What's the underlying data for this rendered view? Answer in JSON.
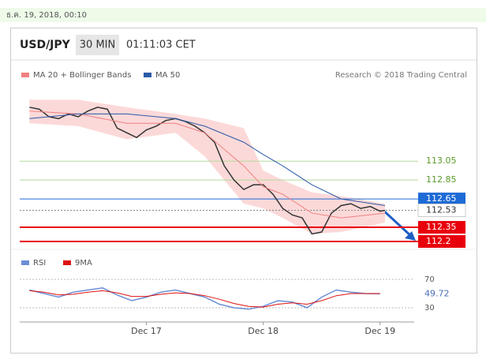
{
  "header": {
    "date": "ธ.ค. 19, 2018, 00:10",
    "symbol": "USD/JPY",
    "interval": "30 MIN",
    "time": "01:11:03 CET"
  },
  "chart_data": [
    {
      "type": "line",
      "source": "Research © 2018 Trading Central",
      "xlim": [
        -2,
        79
      ],
      "ylim": [
        112.15,
        113.92
      ],
      "xticks": [
        {
          "value": 24,
          "label": "Dec 17"
        },
        {
          "value": 48,
          "label": "Dec 18"
        },
        {
          "value": 72,
          "label": "Dec 19"
        }
      ],
      "series": [
        {
          "color": "#333333",
          "x": [
            0,
            2,
            4,
            6,
            8,
            10,
            12,
            14,
            16,
            18,
            20,
            22,
            24,
            26,
            28,
            30,
            32,
            34,
            36,
            38,
            40,
            42,
            44,
            46,
            48,
            50,
            52,
            54,
            56,
            58,
            60,
            62,
            64,
            66,
            68,
            70,
            72,
            73
          ],
          "values": [
            113.62,
            113.6,
            113.52,
            113.5,
            113.55,
            113.52,
            113.58,
            113.62,
            113.6,
            113.4,
            113.35,
            113.3,
            113.38,
            113.42,
            113.48,
            113.5,
            113.47,
            113.42,
            113.35,
            113.25,
            113.0,
            112.85,
            112.75,
            112.8,
            112.8,
            112.7,
            112.55,
            112.48,
            112.45,
            112.28,
            112.3,
            112.5,
            112.58,
            112.6,
            112.55,
            112.57,
            112.52,
            112.53
          ]
        },
        {
          "name": "MA 20 + Bollinger Bands",
          "color": "#f08080",
          "x": [
            0,
            10,
            20,
            30,
            36,
            44,
            48,
            52,
            58,
            64,
            73
          ],
          "values": [
            113.58,
            113.55,
            113.45,
            113.45,
            113.35,
            113.0,
            112.78,
            112.7,
            112.5,
            112.45,
            112.5
          ]
        },
        {
          "name": "MA 50",
          "color": "#2a5aa8",
          "x": [
            0,
            10,
            20,
            30,
            36,
            44,
            48,
            52,
            58,
            64,
            73
          ],
          "values": [
            113.5,
            113.55,
            113.55,
            113.5,
            113.42,
            113.25,
            113.12,
            113.0,
            112.8,
            112.65,
            112.58
          ]
        }
      ],
      "band": {
        "color": "#fcd9d9",
        "x": [
          0,
          10,
          20,
          30,
          36,
          44,
          48,
          52,
          58,
          64,
          73
        ],
        "upper": [
          113.7,
          113.7,
          113.62,
          113.55,
          113.5,
          113.4,
          112.95,
          112.85,
          112.72,
          112.68,
          112.6
        ],
        "lower": [
          113.45,
          113.42,
          113.28,
          113.35,
          113.1,
          112.6,
          112.55,
          112.45,
          112.28,
          112.3,
          112.4
        ]
      },
      "levels": [
        {
          "value": 113.05,
          "color": "#b5d99c",
          "text_color": "#5a9a2a"
        },
        {
          "value": 112.85,
          "color": "#b5d99c",
          "text_color": "#5a9a2a"
        },
        {
          "value": 112.65,
          "color": "#1e6ad6",
          "text_color": "#ffffff",
          "fill": "#1e6ad6"
        },
        {
          "value": 112.53,
          "color": "#888888",
          "text_color": "#333333",
          "dashed": true
        },
        {
          "value": 112.35,
          "color": "#e8000b",
          "text_color": "#ffffff",
          "fill": "#e8000b"
        },
        {
          "value": 112.2,
          "color": "#e8000b",
          "text_color": "#ffffff",
          "fill": "#e8000b"
        }
      ]
    },
    {
      "type": "line",
      "xlim": [
        -2,
        79
      ],
      "ylim": [
        13,
        85
      ],
      "yticks": [
        70,
        30
      ],
      "series": [
        {
          "name": "RSI",
          "color": "#6b8fd6",
          "x": [
            0,
            3,
            6,
            9,
            12,
            15,
            18,
            21,
            24,
            27,
            30,
            33,
            36,
            39,
            42,
            45,
            48,
            51,
            54,
            57,
            60,
            63,
            66,
            69,
            72
          ],
          "values": [
            55,
            50,
            45,
            52,
            55,
            58,
            48,
            40,
            45,
            52,
            55,
            50,
            45,
            35,
            30,
            28,
            32,
            40,
            38,
            30,
            45,
            55,
            52,
            50,
            49.72
          ]
        },
        {
          "name": "9MA",
          "color": "#dd1111",
          "x": [
            0,
            3,
            6,
            9,
            12,
            15,
            18,
            21,
            24,
            27,
            30,
            33,
            36,
            39,
            42,
            45,
            48,
            51,
            54,
            57,
            60,
            63,
            66,
            69,
            72
          ],
          "values": [
            54,
            52,
            48,
            49,
            52,
            54,
            51,
            46,
            46,
            49,
            51,
            50,
            47,
            42,
            36,
            32,
            31,
            35,
            37,
            35,
            40,
            47,
            50,
            50,
            50
          ]
        }
      ]
    }
  ]
}
